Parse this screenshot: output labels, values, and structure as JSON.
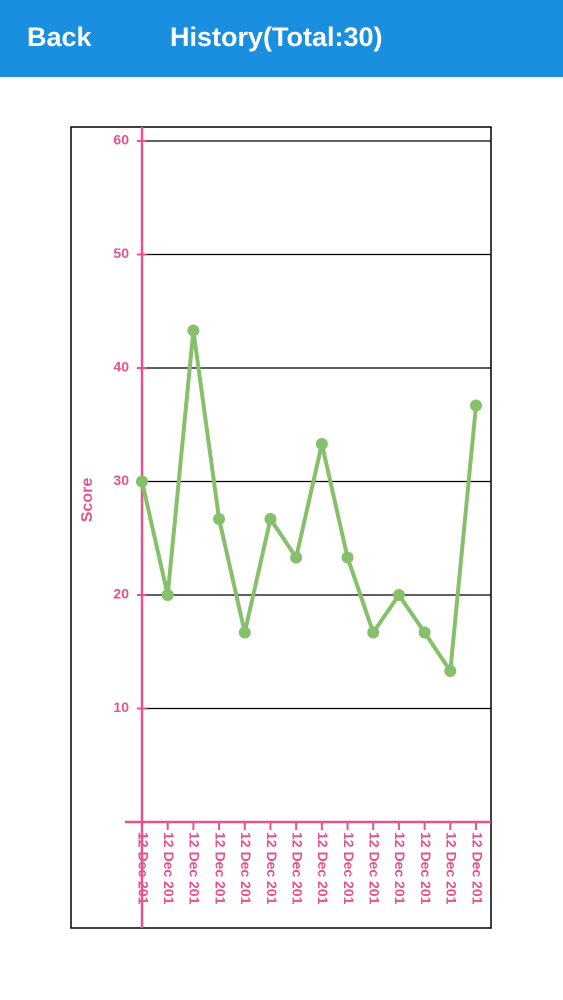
{
  "header": {
    "back": "Back",
    "title": "History(Total:30)"
  },
  "chart_data": {
    "type": "line",
    "y_label": "Score",
    "categories": [
      "12 Dec 201",
      "12 Dec 201",
      "12 Dec 201",
      "12 Dec 201",
      "12 Dec 201",
      "12 Dec 201",
      "12 Dec 201",
      "12 Dec 201",
      "12 Dec 201",
      "12 Dec 201",
      "12 Dec 201",
      "12 Dec 201",
      "12 Dec 201",
      "12 Dec 201"
    ],
    "values": [
      30,
      20,
      43.3,
      26.7,
      16.7,
      26.7,
      23.3,
      33.3,
      23.3,
      16.7,
      20,
      16.7,
      13.3,
      36.7
    ],
    "color": "#86c06a",
    "ylim": [
      0,
      60
    ],
    "yticks": [
      10,
      20,
      30,
      40,
      50,
      60
    ],
    "grid": true
  }
}
